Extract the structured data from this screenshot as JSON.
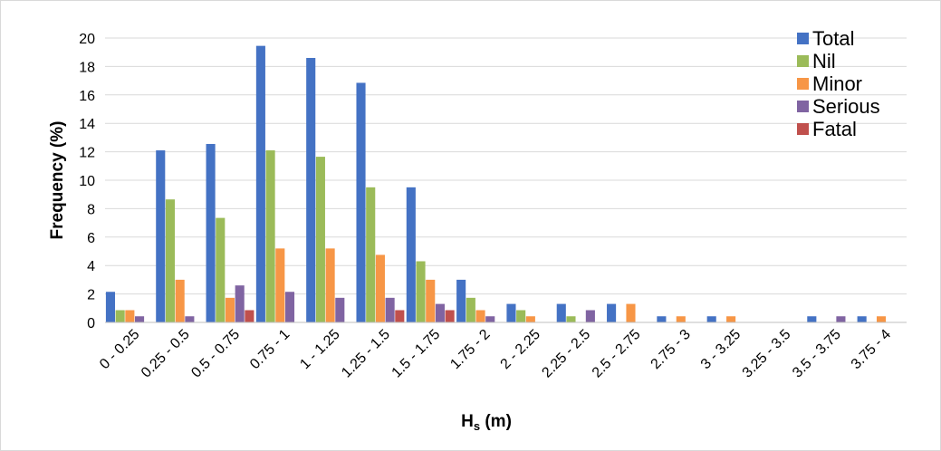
{
  "chart_data": {
    "type": "bar",
    "xlabel": "H",
    "xlabel_sub": "s",
    "xlabel_unit": " (m)",
    "ylabel": "Frequency (%)",
    "ylim": [
      0,
      20
    ],
    "yticks": [
      0,
      2,
      4,
      6,
      8,
      10,
      12,
      14,
      16,
      18,
      20
    ],
    "grid": true,
    "legend_position": "top-right",
    "categories": [
      "0 - 0.25",
      "0.25 - 0.5",
      "0.5 - 0.75",
      "0.75 - 1",
      "1 - 1.25",
      "1.25 - 1.5",
      "1.5 - 1.75",
      "1.75 - 2",
      "2 - 2.25",
      "2.25 - 2.5",
      "2.5 - 2.75",
      "2.75 - 3",
      "3 - 3.25",
      "3.25 - 3.5",
      "3.5 - 3.75",
      "3.75 - 4"
    ],
    "series": [
      {
        "name": "Total",
        "color": "#4472C4",
        "values": [
          2.15,
          12.1,
          12.55,
          19.45,
          18.6,
          16.85,
          9.5,
          3.0,
          1.3,
          1.3,
          1.3,
          0.43,
          0.43,
          0,
          0.43,
          0.43
        ]
      },
      {
        "name": "Nil",
        "color": "#9BBB59",
        "values": [
          0.86,
          8.65,
          7.35,
          12.1,
          11.65,
          9.5,
          4.3,
          1.73,
          0.86,
          0.43,
          0,
          0,
          0,
          0,
          0,
          0
        ]
      },
      {
        "name": "Minor",
        "color": "#F79646",
        "values": [
          0.86,
          3.0,
          1.73,
          5.2,
          5.2,
          4.75,
          3.0,
          0.86,
          0.43,
          0,
          1.3,
          0.43,
          0.43,
          0,
          0,
          0.43
        ]
      },
      {
        "name": "Serious",
        "color": "#8064A2",
        "values": [
          0.43,
          0.43,
          2.6,
          2.15,
          1.73,
          1.73,
          1.3,
          0.43,
          0,
          0.86,
          0,
          0,
          0,
          0,
          0.43,
          0
        ]
      },
      {
        "name": "Fatal",
        "color": "#C0504D",
        "values": [
          0,
          0,
          0.86,
          0,
          0,
          0.86,
          0.86,
          0,
          0,
          0,
          0,
          0,
          0,
          0,
          0,
          0
        ]
      }
    ]
  }
}
